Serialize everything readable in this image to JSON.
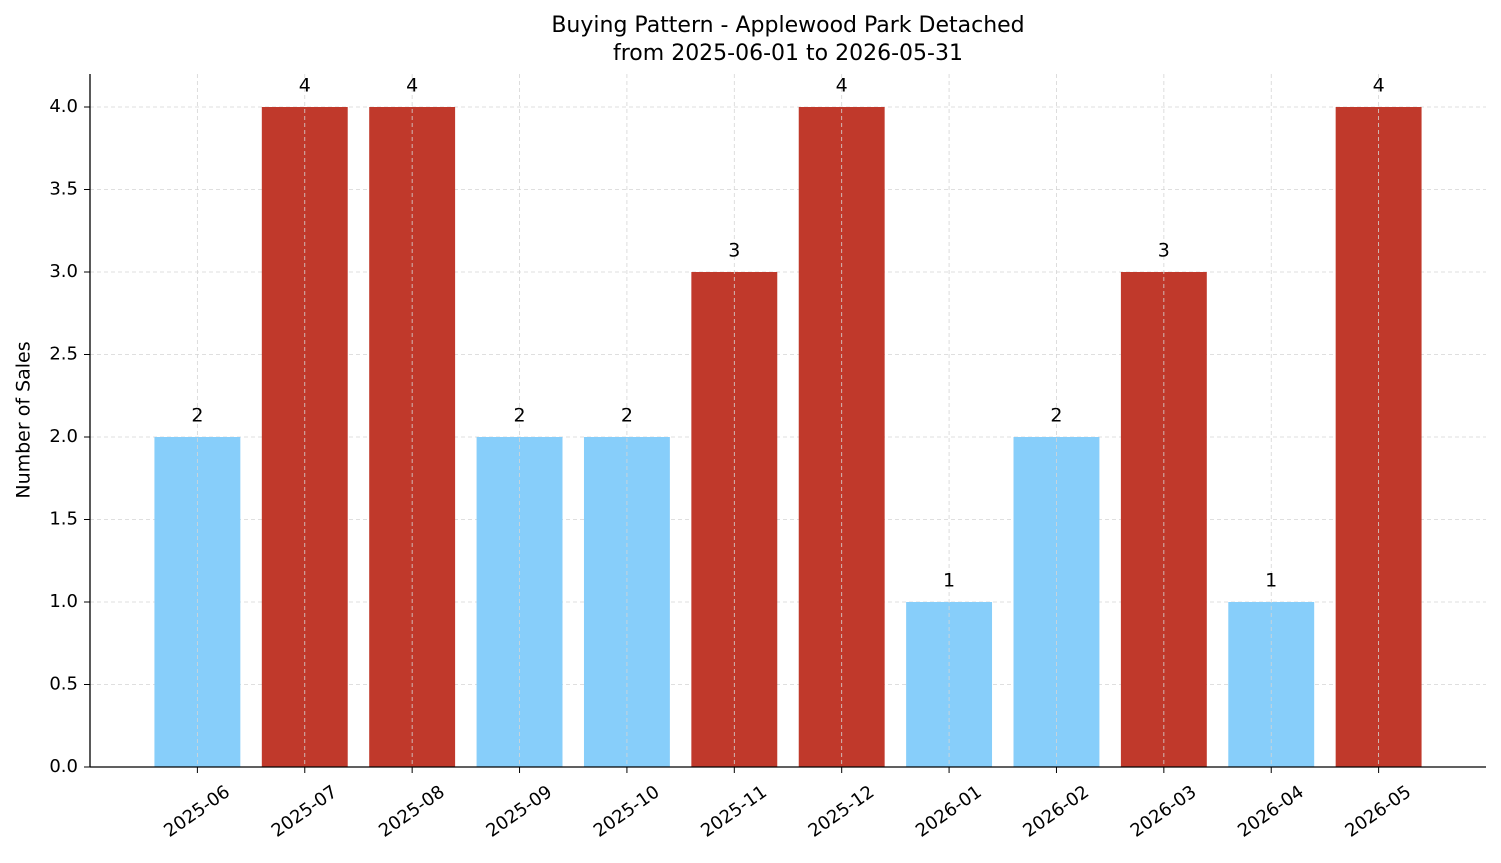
{
  "chart_data": {
    "type": "bar",
    "title": "Buying Pattern - Applewood Park Detached",
    "subtitle": "from 2025-06-01 to 2026-05-31",
    "y_label": "Number of Sales",
    "categories": [
      "2025-06",
      "2025-07",
      "2025-08",
      "2025-09",
      "2025-10",
      "2025-11",
      "2025-12",
      "2026-01",
      "2026-02",
      "2026-03",
      "2026-04",
      "2026-05"
    ],
    "values": [
      2,
      4,
      4,
      2,
      2,
      3,
      4,
      1,
      2,
      3,
      1,
      4
    ],
    "colors": [
      "#87cefa",
      "#c0392b",
      "#c0392b",
      "#87cefa",
      "#87cefa",
      "#c0392b",
      "#c0392b",
      "#87cefa",
      "#87cefa",
      "#c0392b",
      "#87cefa",
      "#c0392b"
    ],
    "ylim": [
      0,
      4.2
    ],
    "yticks": [
      {
        "value": 0,
        "label": "0.0"
      },
      0.5,
      {
        "value": 1,
        "label": "1.0"
      },
      1.5,
      {
        "value": 2,
        "label": "2.0"
      },
      2.5,
      {
        "value": 3,
        "label": "3.0"
      },
      3.5,
      {
        "value": 4,
        "label": "4.0"
      }
    ],
    "grid": true
  }
}
